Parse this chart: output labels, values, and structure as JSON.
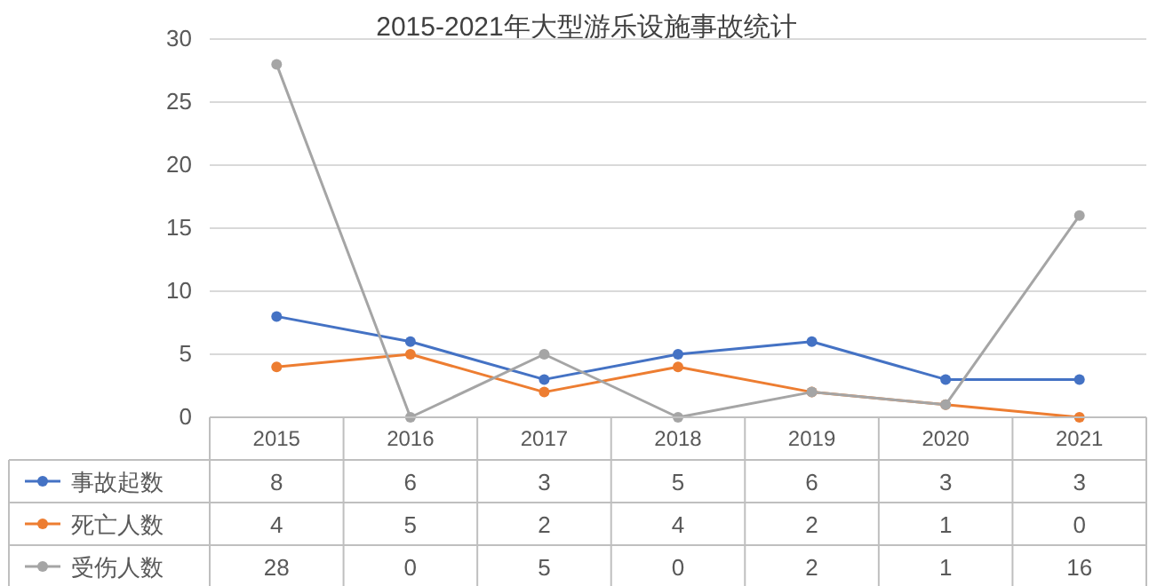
{
  "chart_data": {
    "type": "line",
    "title": "2015-2021年大型游乐设施事故统计",
    "categories": [
      "2015",
      "2016",
      "2017",
      "2018",
      "2019",
      "2020",
      "2021"
    ],
    "series": [
      {
        "name": "事故起数",
        "color": "#4472c4",
        "values": [
          8,
          6,
          3,
          5,
          6,
          3,
          3
        ]
      },
      {
        "name": "死亡人数",
        "color": "#ed7d31",
        "values": [
          4,
          5,
          2,
          4,
          2,
          1,
          0
        ]
      },
      {
        "name": "受伤人数",
        "color": "#a5a5a5",
        "values": [
          28,
          0,
          5,
          0,
          2,
          1,
          16
        ]
      }
    ],
    "ylim": [
      0,
      30
    ],
    "yticks": [
      0,
      5,
      10,
      15,
      20,
      25,
      30
    ],
    "grid": "y",
    "legend": "bottom",
    "data_labels": true,
    "marker": "circle",
    "line_style": "solid"
  }
}
